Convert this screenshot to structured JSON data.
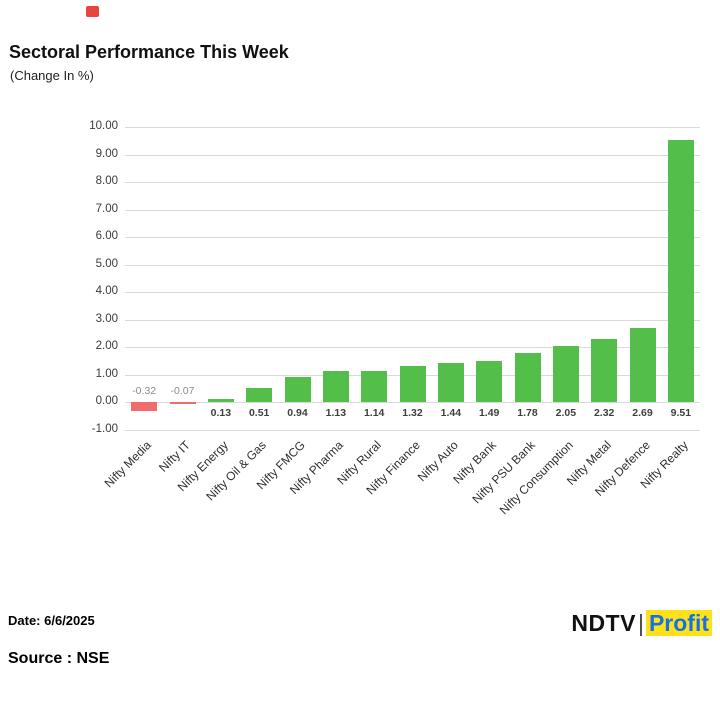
{
  "chart_data": {
    "type": "bar",
    "title": "Sectoral Performance This Week",
    "subtitle": "(Change In %)",
    "categories": [
      "Nifty Media",
      "Nifty IT",
      "Nifty Energy",
      "Nifty Oil & Gas",
      "Nifty FMCG",
      "Nifty Pharma",
      "Nifty Rural",
      "Nifty Finance",
      "Nifty Auto",
      "Nifty Bank",
      "Nifty PSU Bank",
      "Nifty Consumption",
      "Nifty Metal",
      "Nifty Defence",
      "Nifty Realty"
    ],
    "values": [
      -0.32,
      -0.07,
      0.13,
      0.51,
      0.94,
      1.13,
      1.14,
      1.32,
      1.44,
      1.49,
      1.78,
      2.05,
      2.32,
      2.69,
      9.51
    ],
    "ylim": [
      -1,
      10
    ],
    "ytick_step": 1,
    "ytick_labels": [
      "10.00",
      "9.00",
      "8.00",
      "7.00",
      "6.00",
      "5.00",
      "4.00",
      "3.00",
      "2.00",
      "1.00",
      "0.00",
      "-1.00"
    ],
    "grid": true,
    "legend": "none",
    "colors": {
      "positive": "#53bf4a",
      "negative": "#f16b6b",
      "negative_label": "#8d8d8d",
      "value_label": "#3f3f3f",
      "grid": "#d9d9d9"
    }
  },
  "footer": {
    "date": "Date: 6/6/2025",
    "source": "Source : NSE",
    "logo": {
      "part1": "NDTV",
      "separator": "|",
      "part2": "Profit"
    }
  }
}
